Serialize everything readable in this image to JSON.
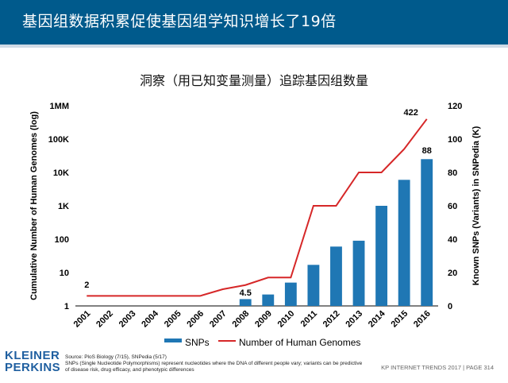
{
  "header": {
    "title": "基因组数据积累促使基因组学知识增长了19倍"
  },
  "chart_data": {
    "type": "bar",
    "title": "洞察（用已知变量测量）追踪基因组数量",
    "categories": [
      "2001",
      "2002",
      "2003",
      "2004",
      "2005",
      "2006",
      "2007",
      "2008",
      "2009",
      "2010",
      "2011",
      "2012",
      "2013",
      "2014",
      "2015",
      "2016"
    ],
    "left_axis": {
      "label": "Cumulative Number of Human Genomes (log)",
      "scale": "log",
      "ticks": [
        1,
        10,
        100,
        1000,
        10000,
        100000,
        1000000
      ],
      "tick_labels": [
        "1",
        "10",
        "100",
        "1K",
        "10K",
        "100K",
        "1MM"
      ]
    },
    "right_axis": {
      "label": "Known SNPs (Variants) in SNPedia (K)",
      "scale": "linear",
      "ylim": [
        0,
        120
      ],
      "ticks": [
        0,
        20,
        40,
        60,
        80,
        100,
        120
      ]
    },
    "series": [
      {
        "name": "SNPs",
        "type": "bar",
        "axis": "left",
        "color": "#1f77b4",
        "values": [
          null,
          null,
          null,
          null,
          null,
          null,
          null,
          1.6,
          2.2,
          5,
          17,
          60,
          90,
          1000,
          6000,
          25000
        ]
      },
      {
        "name": "Number of Human Genomes",
        "type": "line",
        "axis": "right",
        "color": "#d62728",
        "values": [
          6,
          6,
          6,
          6,
          6,
          6,
          10,
          12.5,
          17,
          17,
          60,
          60,
          80,
          80,
          94,
          112
        ]
      }
    ],
    "annotations": [
      {
        "text": "2",
        "category": "2001"
      },
      {
        "text": "4.5",
        "category": "2008"
      },
      {
        "text": "422",
        "category": "2016"
      },
      {
        "text": "88",
        "category": "2016"
      }
    ],
    "legend": {
      "position": "bottom"
    }
  },
  "footer": {
    "source": "Source: PloS Biology (7/15), SNPedia (5/17)",
    "note": "SNPs (Single Nucleotide Polymorphisms) represent nucleotides where the DNA of different people vary; variants can be predictive of disease risk, drug efficacy, and phenotypic differences",
    "logo_line1": "KLEINER",
    "logo_line2": "PERKINS",
    "page": "KP INTERNET TRENDS 2017  |  PAGE 314"
  },
  "colors": {
    "header_bg": "#005a8c",
    "bar": "#1f77b4",
    "line": "#d62728"
  }
}
